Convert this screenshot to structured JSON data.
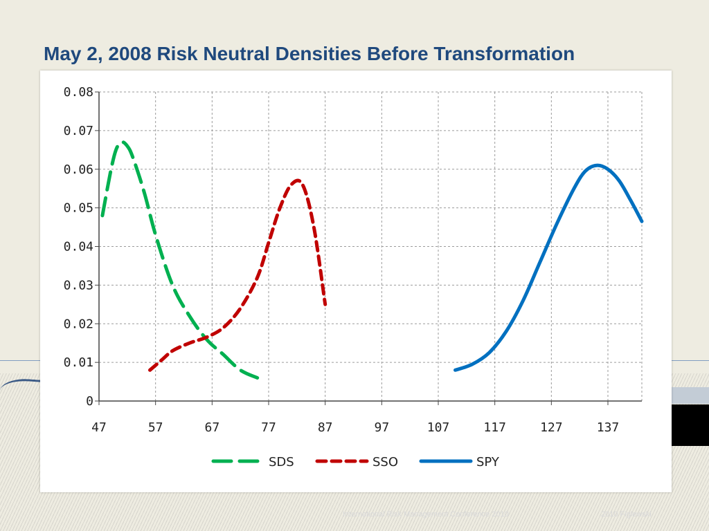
{
  "slide": {
    "title": "May 2, 2008 Risk Neutral Densities Before Transformation",
    "footer_left": "International Risk Management Conference 2010",
    "footer_right": "2010 Figlewski"
  },
  "chart_data": {
    "type": "line",
    "title": "",
    "xlabel": "",
    "ylabel": "",
    "xlim": [
      47,
      143
    ],
    "ylim": [
      0,
      0.08
    ],
    "x_ticks": [
      47,
      57,
      67,
      77,
      87,
      97,
      107,
      117,
      127,
      137
    ],
    "y_ticks": [
      0,
      0.01,
      0.02,
      0.03,
      0.04,
      0.05,
      0.06,
      0.07,
      0.08
    ],
    "y_tick_labels": [
      "0",
      "0.01",
      "0.02",
      "0.03",
      "0.04",
      "0.05",
      "0.06",
      "0.07",
      "0.08"
    ],
    "grid": true,
    "legend_position": "bottom",
    "series": [
      {
        "name": "SDS",
        "color": "#00b050",
        "style": "long-dash",
        "x": [
          47.6,
          49,
          50,
          51,
          52,
          53,
          55,
          57,
          60,
          63,
          66,
          69,
          72,
          75
        ],
        "y": [
          0.048,
          0.059,
          0.065,
          0.067,
          0.066,
          0.063,
          0.054,
          0.043,
          0.03,
          0.022,
          0.016,
          0.012,
          0.008,
          0.006
        ]
      },
      {
        "name": "SSO",
        "color": "#c00000",
        "style": "short-dash",
        "x": [
          56,
          58,
          60,
          63,
          66,
          69,
          72,
          75,
          77,
          79,
          81,
          83,
          85,
          87
        ],
        "y": [
          0.008,
          0.0105,
          0.013,
          0.015,
          0.0165,
          0.019,
          0.024,
          0.032,
          0.041,
          0.05,
          0.056,
          0.056,
          0.045,
          0.025
        ]
      },
      {
        "name": "SPY",
        "color": "#0070c0",
        "style": "solid",
        "x": [
          110,
          113,
          116,
          119,
          122,
          125,
          128,
          131,
          133,
          135,
          137,
          139,
          141,
          143
        ],
        "y": [
          0.008,
          0.0095,
          0.0125,
          0.018,
          0.026,
          0.036,
          0.046,
          0.055,
          0.0595,
          0.061,
          0.06,
          0.057,
          0.052,
          0.0465
        ]
      }
    ]
  }
}
